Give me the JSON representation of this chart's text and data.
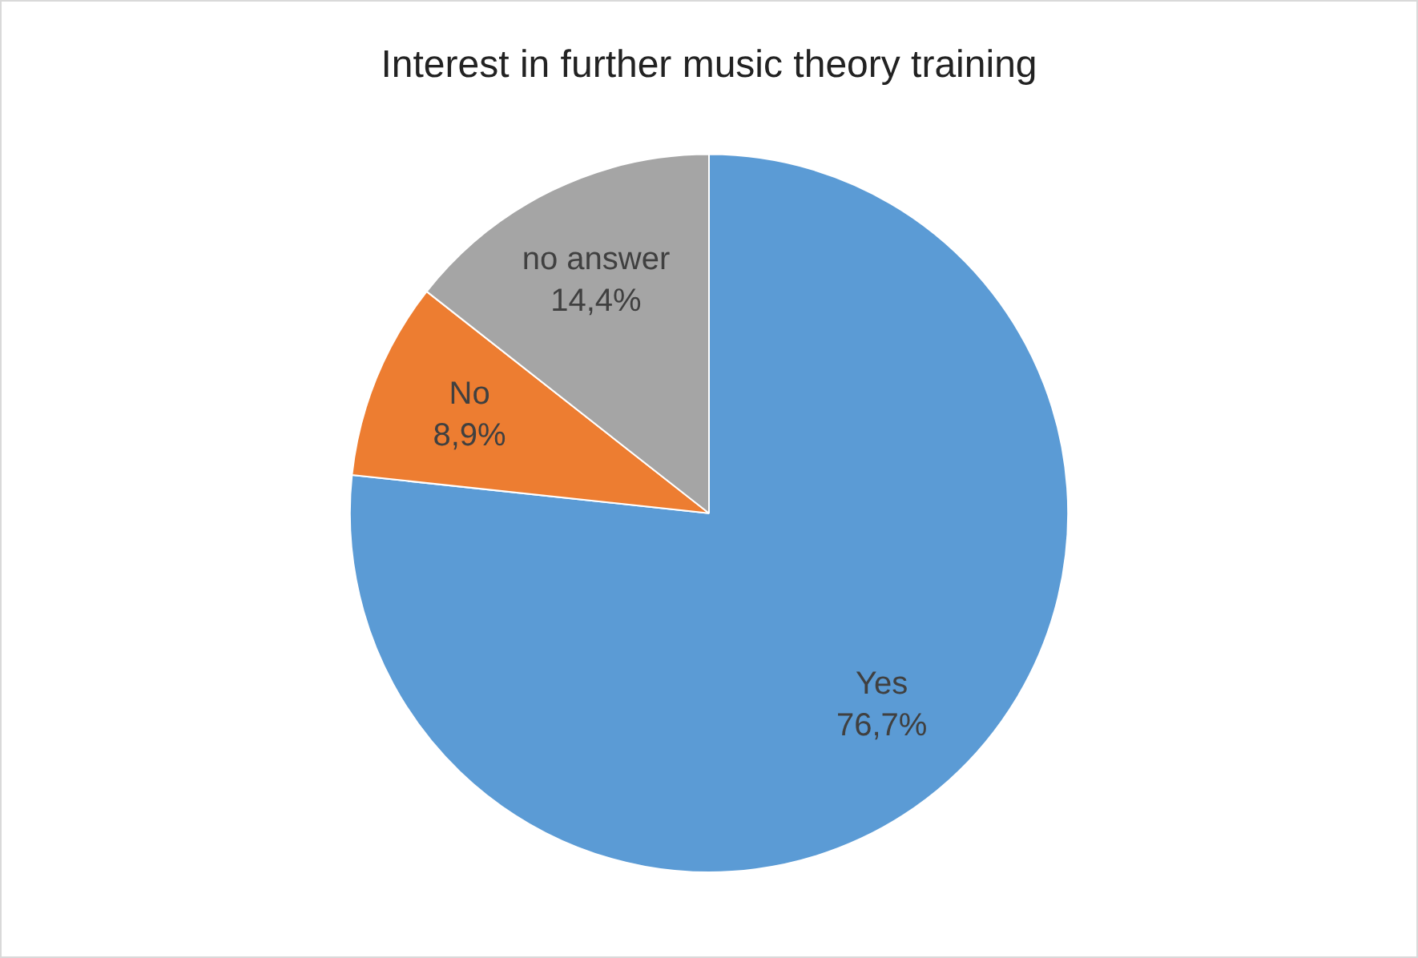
{
  "chart_data": {
    "type": "pie",
    "title": "Interest in further music theory training",
    "categories": [
      "Yes",
      "No",
      "no answer"
    ],
    "values": [
      76.7,
      8.9,
      14.4
    ],
    "colors": [
      "#5b9bd5",
      "#ed7d31",
      "#a5a5a5"
    ],
    "value_labels": [
      "76,7%",
      "8,9%",
      "14,4%"
    ],
    "legend": false
  }
}
